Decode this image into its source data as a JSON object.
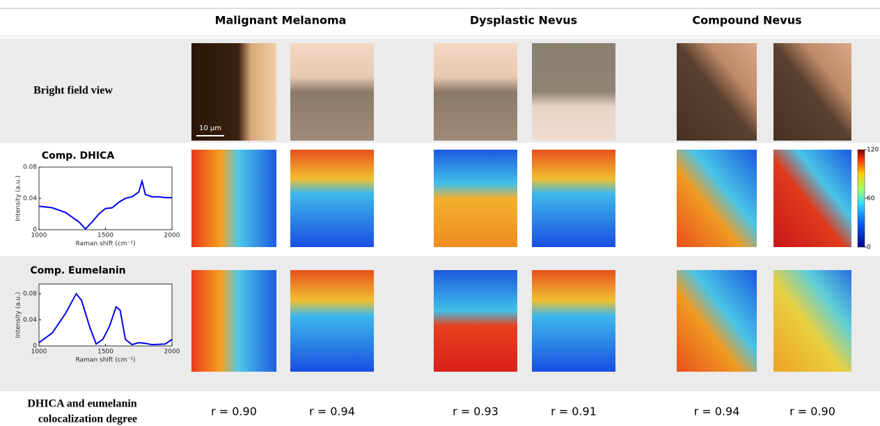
{
  "header": {
    "columns": [
      "Malignant Melanoma",
      "Dysplastic Nevus",
      "Compound Nevus"
    ]
  },
  "rows": {
    "bright_field": "Bright field view",
    "dhica": "Comp. DHICA",
    "eumelanin": "Comp. Eumelanin",
    "colocalization": [
      "DHICA and eumelanin",
      "colocalization degree"
    ]
  },
  "scale_bar": "10 µm",
  "correlations": [
    "r = 0.90",
    "r = 0.94",
    "r = 0.93",
    "r = 0.91",
    "r = 0.94",
    "r = 0.90"
  ],
  "colorbar": {
    "ylim": [
      0,
      120
    ],
    "yticks": [
      0,
      60,
      120
    ]
  },
  "spectra": [
    {
      "type": "line",
      "ylabel": "Intensity (a.u.)",
      "xlabel": "Raman shift (cm⁻¹)",
      "color": "#0000ee",
      "xlim": [
        1000,
        2000
      ],
      "ylim": [
        0,
        0.08
      ],
      "xticks": [
        1000,
        1500,
        2000
      ],
      "yticks": [
        0,
        0.04,
        0.08
      ],
      "x": [
        1000,
        1100,
        1200,
        1300,
        1350,
        1400,
        1450,
        1500,
        1550,
        1600,
        1650,
        1700,
        1750,
        1775,
        1800,
        1850,
        1900,
        1950,
        2000
      ],
      "values": [
        0.03,
        0.028,
        0.022,
        0.01,
        0.001,
        0.01,
        0.02,
        0.027,
        0.028,
        0.035,
        0.04,
        0.042,
        0.048,
        0.062,
        0.045,
        0.042,
        0.042,
        0.041,
        0.041
      ]
    },
    {
      "type": "line",
      "ylabel": "Intensity (a.u.)",
      "xlabel": "Raman shift (cm⁻¹)",
      "color": "#0000ee",
      "xlim": [
        1000,
        2000
      ],
      "ylim": [
        0,
        0.095
      ],
      "xticks": [
        1000,
        1500,
        2000
      ],
      "yticks": [
        0,
        0.04,
        0.08
      ],
      "x": [
        1000,
        1100,
        1200,
        1280,
        1320,
        1380,
        1430,
        1480,
        1530,
        1580,
        1610,
        1650,
        1700,
        1750,
        1800,
        1850,
        1950,
        2000
      ],
      "values": [
        0.005,
        0.02,
        0.05,
        0.08,
        0.07,
        0.03,
        0.003,
        0.01,
        0.03,
        0.06,
        0.055,
        0.01,
        0.002,
        0.005,
        0.004,
        0.002,
        0.003,
        0.01
      ]
    }
  ]
}
